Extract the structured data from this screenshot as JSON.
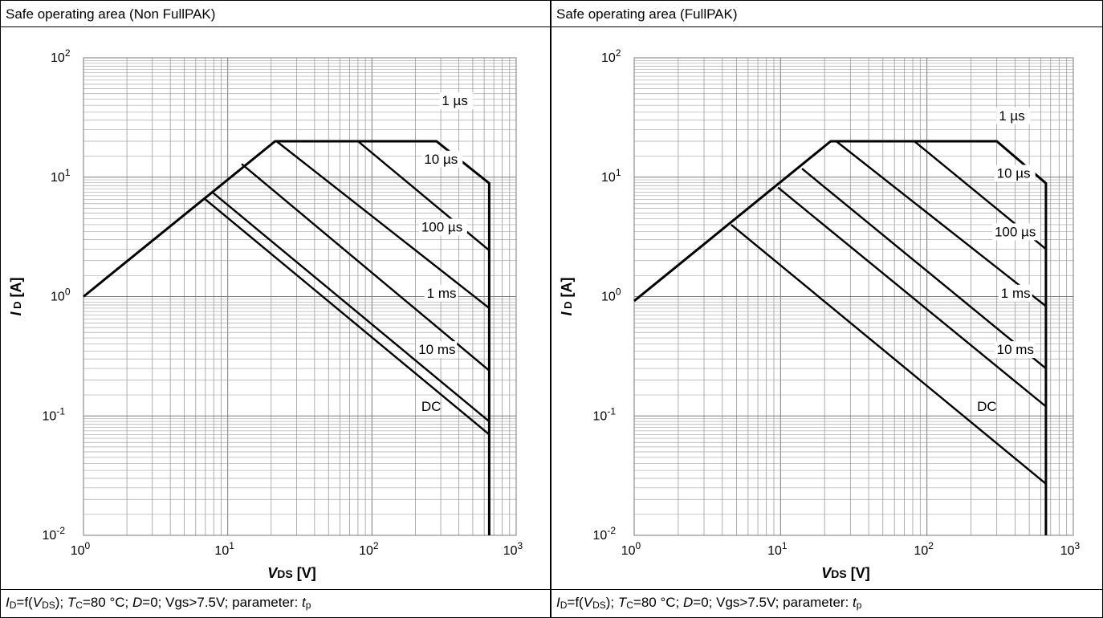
{
  "chart_data": [
    {
      "type": "line",
      "title": "Safe operating area  (Non FullPAK)",
      "xlabel": "VDS [V]",
      "ylabel": "ID [A]",
      "xscale": "log",
      "yscale": "log",
      "xlim": [
        1,
        1000
      ],
      "ylim": [
        0.01,
        100
      ],
      "grid": true,
      "x_tick_labels": [
        "10^0",
        "10^1",
        "10^2",
        "10^3"
      ],
      "y_tick_labels": [
        "10^-2",
        "10^-1",
        "10^0",
        "10^1",
        "10^2"
      ],
      "caption": "ID=f(VDS); TC=80 °C; D=0; Vgs>7.5V; parameter: tp",
      "series": [
        {
          "name": "1 µs",
          "x": [
            1,
            21.3,
            280,
            650,
            650
          ],
          "y": [
            1,
            20,
            20,
            8.9,
            0.01
          ]
        },
        {
          "name": "10 µs",
          "x": [
            26,
            80,
            650
          ],
          "y": [
            20,
            20,
            2.44
          ]
        },
        {
          "name": "100 µs",
          "x": [
            21.8,
            650
          ],
          "y": [
            20,
            0.8
          ]
        },
        {
          "name": "1 ms",
          "x": [
            12.5,
            650
          ],
          "y": [
            12.9,
            0.24
          ]
        },
        {
          "name": "10 ms",
          "x": [
            7.7,
            650
          ],
          "y": [
            7.6,
            0.09
          ]
        },
        {
          "name": "DC",
          "x": [
            6.8,
            650
          ],
          "y": [
            6.7,
            0.07
          ]
        }
      ]
    },
    {
      "type": "line",
      "title": "Safe operating area (FullPAK)",
      "xlabel": "VDS [V]",
      "ylabel": "ID [A]",
      "xscale": "log",
      "yscale": "log",
      "xlim": [
        1,
        1000
      ],
      "ylim": [
        0.01,
        100
      ],
      "grid": true,
      "x_tick_labels": [
        "10^0",
        "10^1",
        "10^2",
        "10^3"
      ],
      "y_tick_labels": [
        "10^-2",
        "10^-1",
        "10^0",
        "10^1",
        "10^2"
      ],
      "caption": "ID=f(VDS); TC=80 °C; D=0; Vgs>7.5V; parameter: tp",
      "series": [
        {
          "name": "1 µs",
          "x": [
            1,
            22,
            300,
            650,
            650
          ],
          "y": [
            0.92,
            20,
            20,
            8.9,
            0.01
          ]
        },
        {
          "name": "10 µs",
          "x": [
            27,
            82,
            650
          ],
          "y": [
            20,
            20,
            2.5
          ]
        },
        {
          "name": "100 µs",
          "x": [
            24,
            650
          ],
          "y": [
            20,
            0.83
          ]
        },
        {
          "name": "1 ms",
          "x": [
            14,
            650
          ],
          "y": [
            11.8,
            0.25
          ]
        },
        {
          "name": "10 ms",
          "x": [
            9.6,
            650
          ],
          "y": [
            8.2,
            0.12
          ]
        },
        {
          "name": "DC",
          "x": [
            4.6,
            650
          ],
          "y": [
            4.0,
            0.027
          ]
        }
      ]
    }
  ],
  "panels": [
    {
      "title": "Safe operating area  (Non FullPAK)"
    },
    {
      "title": "Safe operating area (FullPAK)"
    }
  ]
}
